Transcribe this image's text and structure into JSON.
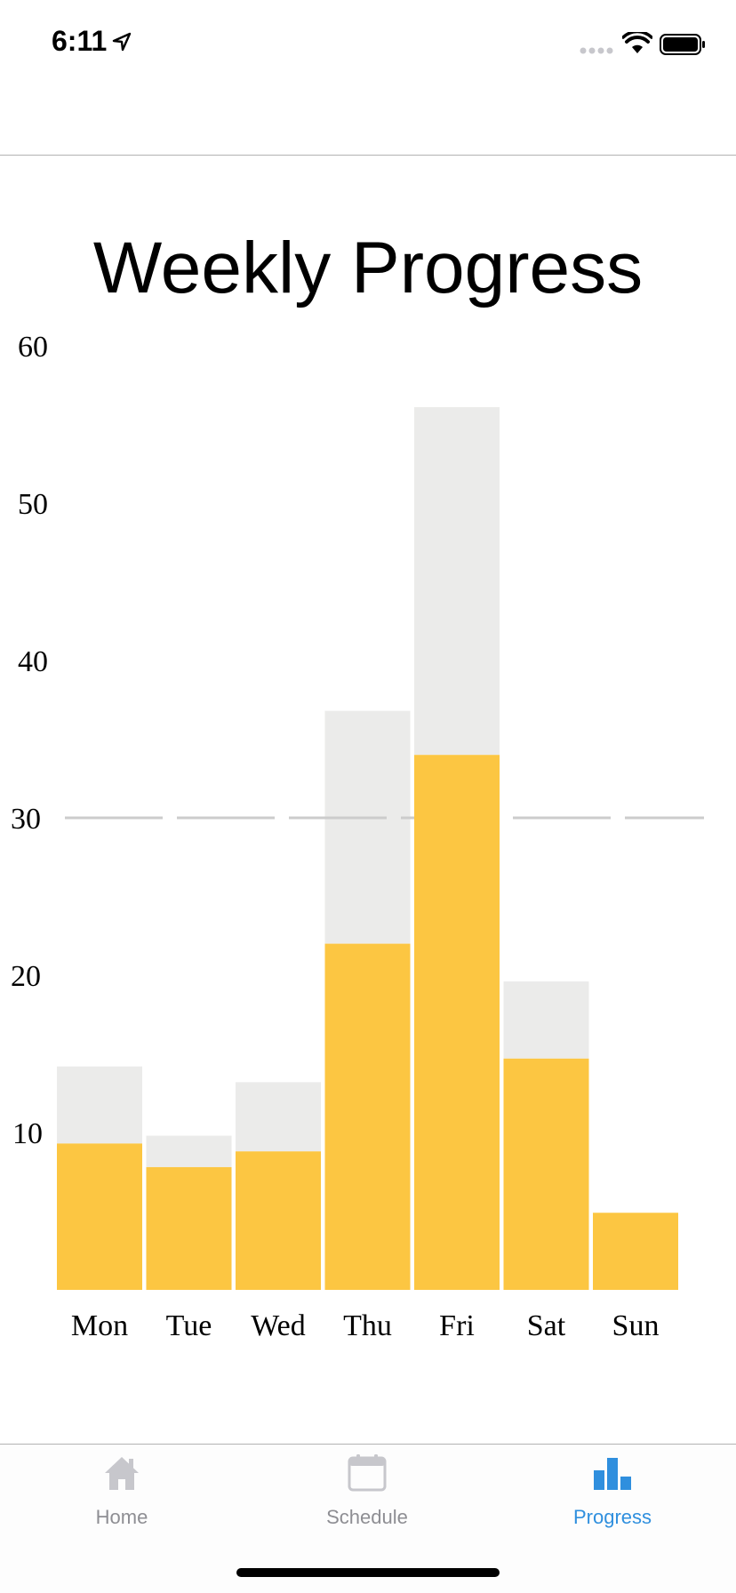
{
  "status_bar": {
    "time": "6:11",
    "icons": [
      "location-arrow-icon",
      "signal-icon",
      "wifi-icon",
      "battery-icon"
    ]
  },
  "page": {
    "title": "Weekly Progress"
  },
  "colors": {
    "completed": "#fcc642",
    "goal_remainder": "#ebebea",
    "reference_line": "#cccccc",
    "tab_active": "#2f8fde",
    "tab_inactive": "#c7c7cc"
  },
  "chart_data": {
    "type": "bar",
    "stacked": true,
    "title": "Weekly Progress",
    "xlabel": "",
    "ylabel": "",
    "categories": [
      "Mon",
      "Tue",
      "Wed",
      "Thu",
      "Fri",
      "Sat",
      "Sun"
    ],
    "series": [
      {
        "values": [
          9.3,
          7.8,
          8.8,
          22.0,
          34.0,
          14.7,
          4.9
        ]
      },
      {
        "values": [
          4.9,
          2.0,
          4.4,
          14.8,
          22.1,
          4.9,
          0
        ]
      }
    ],
    "goal_totals": [
      14.2,
      9.8,
      13.2,
      36.8,
      56.1,
      19.6,
      4.9
    ],
    "reference_line": {
      "y": 30,
      "style": "dashed"
    },
    "y_ticks": [
      10,
      20,
      30,
      40,
      50,
      60
    ],
    "ylim": [
      0,
      60
    ],
    "grid": false,
    "legend": "none"
  },
  "tab_bar": {
    "tabs": [
      {
        "label": "Home",
        "icon": "home-icon",
        "active": false
      },
      {
        "label": "Schedule",
        "icon": "calendar-icon",
        "active": false
      },
      {
        "label": "Progress",
        "icon": "bar-chart-icon",
        "active": true
      }
    ]
  }
}
